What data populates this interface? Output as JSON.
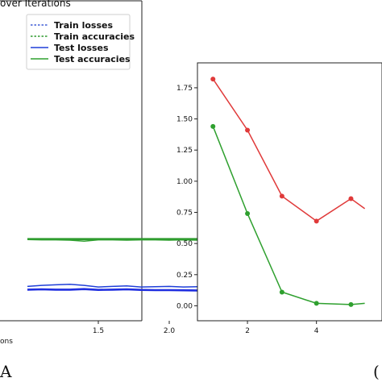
{
  "chart_data": [
    {
      "type": "line",
      "title": "over Iterations",
      "xlabel": "ons",
      "panel_label": "A",
      "x_ticks": [
        "1.5",
        "2.0"
      ],
      "legend": {
        "placement": "top-right",
        "entries": [
          {
            "label": "Train losses",
            "color": "#3f5bd6",
            "style": "dashed"
          },
          {
            "label": "Train accuracies",
            "color": "#2e9a2e",
            "style": "dashed"
          },
          {
            "label": "Test losses",
            "color": "#1f3fd8",
            "style": "solid"
          },
          {
            "label": "Test accuracies",
            "color": "#2fa02f",
            "style": "solid"
          }
        ]
      },
      "x_range": [
        1.0,
        2.2
      ],
      "series": [
        {
          "name": "Train accuracies",
          "color": "#2e9a2e",
          "x": [
            1.0,
            1.1,
            1.2,
            1.3,
            1.4,
            1.5,
            1.6,
            1.7,
            1.8,
            1.9,
            2.0,
            2.1,
            2.2
          ],
          "y": [
            0.99,
            0.99,
            0.99,
            0.99,
            0.99,
            0.99,
            0.99,
            0.99,
            0.99,
            0.99,
            0.99,
            0.99,
            0.99
          ]
        },
        {
          "name": "Test accuracies",
          "color": "#2fa02f",
          "x": [
            1.0,
            1.1,
            1.2,
            1.3,
            1.4,
            1.5,
            1.6,
            1.7,
            1.8,
            1.9,
            2.0,
            2.1,
            2.2
          ],
          "y": [
            0.98,
            0.975,
            0.975,
            0.97,
            0.95,
            0.975,
            0.975,
            0.97,
            0.975,
            0.975,
            0.97,
            0.975,
            0.97
          ]
        },
        {
          "name": "Test losses",
          "color": "#1f3fd8",
          "x": [
            1.0,
            1.1,
            1.2,
            1.3,
            1.4,
            1.5,
            1.6,
            1.7,
            1.8,
            1.9,
            2.0,
            2.1,
            2.2
          ],
          "y": [
            0.1,
            0.12,
            0.13,
            0.14,
            0.12,
            0.09,
            0.1,
            0.11,
            0.09,
            0.095,
            0.1,
            0.09,
            0.095
          ]
        },
        {
          "name": "Train losses",
          "color": "#1f2ee0",
          "x": [
            1.0,
            1.1,
            1.2,
            1.3,
            1.4,
            1.5,
            1.6,
            1.7,
            1.8,
            1.9,
            2.0,
            2.1,
            2.2
          ],
          "y": [
            0.04,
            0.045,
            0.04,
            0.04,
            0.05,
            0.035,
            0.04,
            0.045,
            0.035,
            0.03,
            0.03,
            0.028,
            0.025
          ]
        }
      ]
    },
    {
      "type": "line",
      "y_ticks": [
        "0.00",
        "0.25",
        "0.50",
        "0.75",
        "1.00",
        "1.25",
        "1.50",
        "1.75"
      ],
      "x_ticks": [
        "2",
        "4"
      ],
      "ylim": [
        -0.12,
        1.95
      ],
      "xlim": [
        0.55,
        5.9
      ],
      "series": [
        {
          "color": "#e03a3a",
          "x": [
            1,
            2,
            3,
            4,
            5,
            5.4
          ],
          "y": [
            1.82,
            1.41,
            0.88,
            0.68,
            0.86,
            0.78
          ]
        },
        {
          "color": "#2fa02f",
          "x": [
            1,
            2,
            3,
            4,
            5,
            5.4
          ],
          "y": [
            1.44,
            0.74,
            0.11,
            0.02,
            0.01,
            0.02
          ]
        }
      ]
    }
  ],
  "panel_right_label": "("
}
